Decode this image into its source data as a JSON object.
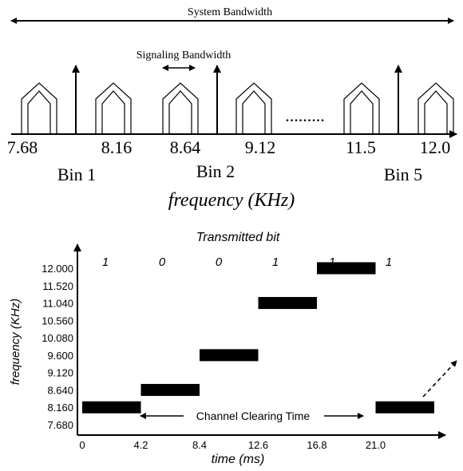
{
  "top_diagram": {
    "system_bandwidth_label": "System Bandwidth",
    "signaling_bandwidth_label": "Signaling Bandwidth",
    "dots": ".........",
    "frequencies": [
      "7.68",
      "8.16",
      "8.64",
      "9.12",
      "11.5",
      "12.0"
    ],
    "bins": [
      "Bin 1",
      "Bin 2",
      "Bin 5"
    ],
    "axis_label": "frequency (KHz)"
  },
  "bottom_chart": {
    "title": "Transmitted bit",
    "bits": [
      "1",
      "0",
      "0",
      "1",
      "1",
      "1"
    ],
    "y_label": "frequency (KHz)",
    "y_ticks": [
      "12.000",
      "11.520",
      "11.040",
      "10.560",
      "10.080",
      "9.600",
      "9.120",
      "8.640",
      "8.160",
      "7.680"
    ],
    "x_label": "time (ms)",
    "x_ticks": [
      "0",
      "4.2",
      "8.4",
      "12.6",
      "16.8",
      "21.0"
    ],
    "annotation": "Channel Clearing Time"
  },
  "chart_data": {
    "type": "bar",
    "title": "Transmitted bit",
    "xlabel": "time (ms)",
    "ylabel": "frequency (KHz)",
    "bits": [
      "1",
      "0",
      "0",
      "1",
      "1",
      "1"
    ],
    "segments": [
      {
        "bit": "1",
        "t_start": 0,
        "t_end": 4.2,
        "frequency": 8.16
      },
      {
        "bit": "0",
        "t_start": 4.2,
        "t_end": 8.4,
        "frequency": 8.64
      },
      {
        "bit": "0",
        "t_start": 8.4,
        "t_end": 12.6,
        "frequency": 9.6
      },
      {
        "bit": "1",
        "t_start": 12.6,
        "t_end": 16.8,
        "frequency": 11.04
      },
      {
        "bit": "1",
        "t_start": 16.8,
        "t_end": 21.0,
        "frequency": 12.0
      },
      {
        "bit": "1",
        "t_start": 21.0,
        "t_end": 25.2,
        "frequency": 8.16
      }
    ],
    "xlim": [
      0,
      25.2
    ],
    "ylim": [
      7.68,
      12.0
    ],
    "grid": false
  }
}
